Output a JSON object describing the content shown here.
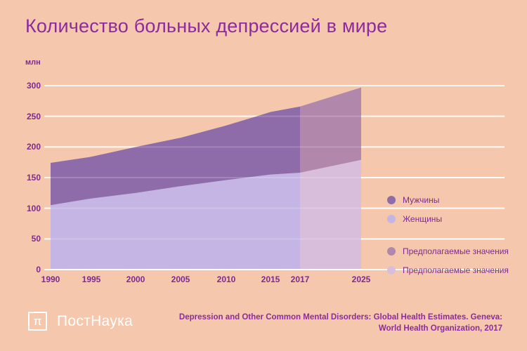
{
  "title": "Количество больных депрессией в мире",
  "y_axis_unit": "млн",
  "chart_data": {
    "type": "area",
    "stacked": true,
    "title": "Количество больных депрессией в мире",
    "x": [
      1990,
      1995,
      2000,
      2005,
      2010,
      2015,
      2017,
      2025
    ],
    "series": [
      {
        "name": "Женщины",
        "values": [
          105,
          116,
          125,
          136,
          146,
          155,
          158,
          179
        ],
        "color": "#c4b5e4",
        "forecast_color": "#d8bedb"
      },
      {
        "name": "Мужчины",
        "values": [
          69,
          68,
          75,
          79,
          89,
          102,
          108,
          118
        ],
        "color": "#8e6caa",
        "forecast_color": "#b187ab"
      }
    ],
    "totals": [
      174,
      184,
      200,
      215,
      235,
      257,
      266,
      297
    ],
    "forecast_from": 2017,
    "forecast_label": "Предполагаемые значения",
    "ylabel": "млн",
    "xlabel": "",
    "ylim": [
      0,
      300
    ],
    "yticks": [
      0,
      50,
      100,
      150,
      200,
      250,
      300
    ],
    "grid": true,
    "legend_position": "right"
  },
  "legend": {
    "items": [
      {
        "label": "Мужчины",
        "color": "#8e6caa"
      },
      {
        "label": "Женщины",
        "color": "#c4b5e4"
      },
      {
        "label": "Предполагаемые значения",
        "color": "#b187ab"
      },
      {
        "label": "Предполагаемые значения",
        "color": "#d8bedb"
      }
    ]
  },
  "footer": {
    "logo_symbol": "π",
    "logo_text": "ПостНаука",
    "source_line1": "Depression and Other Common Mental Disorders: Global Health Estimates. Geneva:",
    "source_line2": "World Health Organization, 2017"
  },
  "colors": {
    "background": "#f5c7ad",
    "title_text": "#8c2ba0",
    "axis_text": "#7d2b8d",
    "gridline": "#ffffff"
  }
}
